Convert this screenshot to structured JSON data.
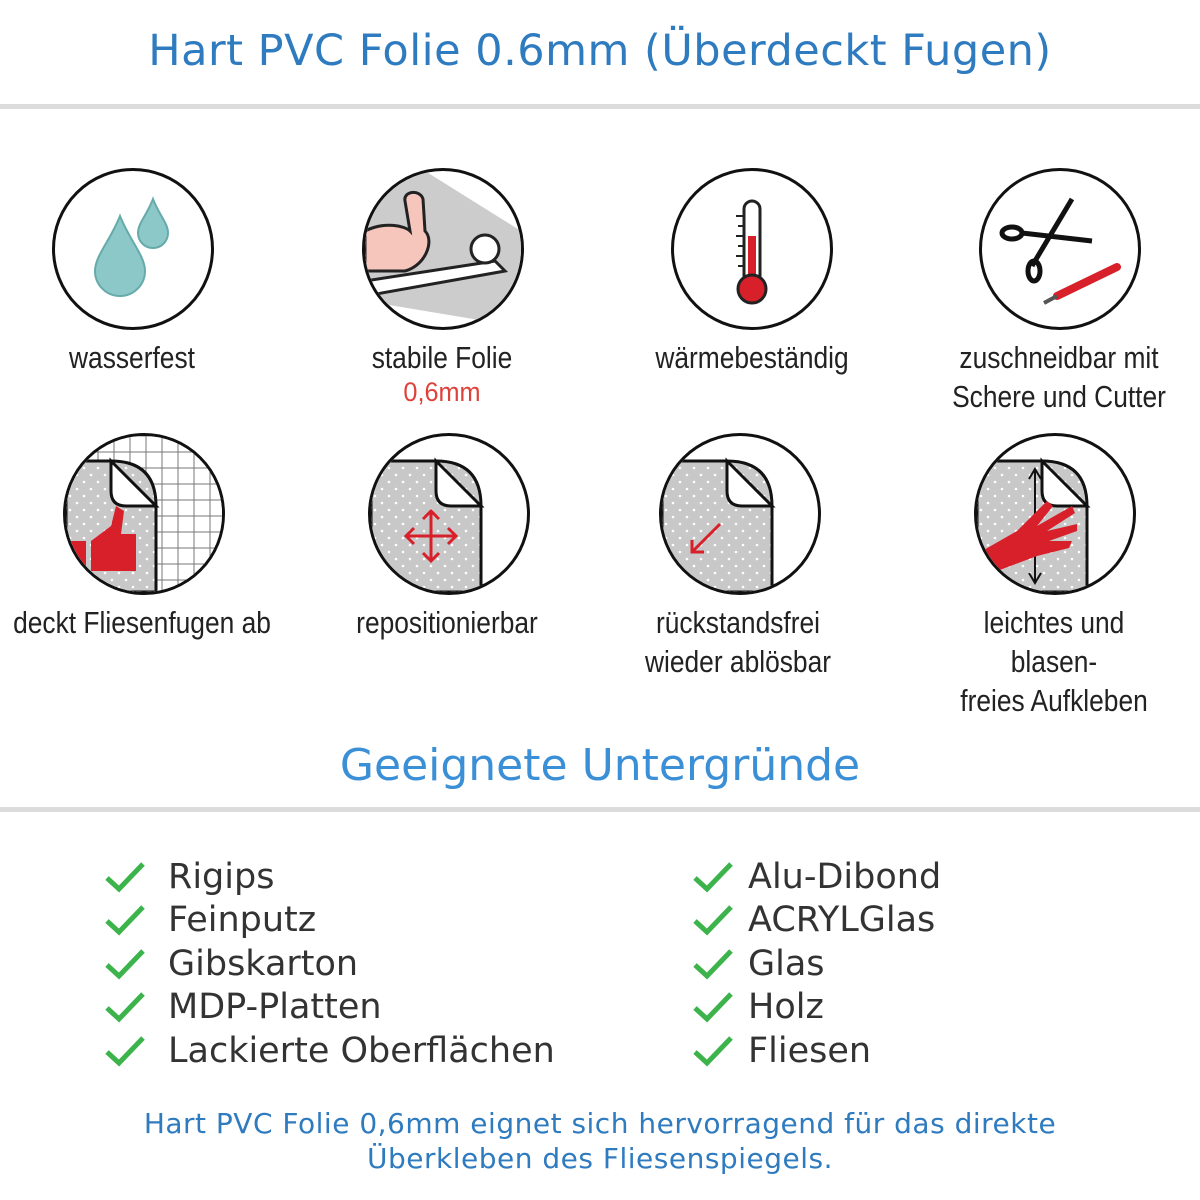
{
  "header": {
    "title": "Hart PVC Folie 0.6mm (Überdeckt Fugen)"
  },
  "features": [
    {
      "icon": "water-drops-icon",
      "label": "wasserfest"
    },
    {
      "icon": "strong-arm-icon",
      "label": "stabile Folie",
      "sublabel": "0,6mm"
    },
    {
      "icon": "thermometer-icon",
      "label": "wärmebeständig"
    },
    {
      "icon": "scissors-cutter-icon",
      "label_line1": "zuschneidbar mit",
      "label_line2": "Schere und Cutter"
    },
    {
      "icon": "thumbs-up-tiles-icon",
      "label": "deckt Fliesenfugen ab"
    },
    {
      "icon": "move-arrows-icon",
      "label": "repositionierbar"
    },
    {
      "icon": "peel-arrow-icon",
      "label_line1": "rückstandsfrei",
      "label_line2": "wieder ablösbar"
    },
    {
      "icon": "hand-smoothing-icon",
      "label_line1": "leichtes und blasen-",
      "label_line2": "freies Aufkleben"
    }
  ],
  "surfaces": {
    "title": "Geeignete Untergründe",
    "left": [
      "Rigips",
      "Feinputz",
      "Gibskarton",
      "MDP-Platten",
      "Lackierte Oberflächen"
    ],
    "right": [
      "Alu-Dibond",
      "ACRYLGlas",
      "Glas",
      "Holz",
      "Fliesen"
    ]
  },
  "footer": {
    "line1": "Hart PVC Folie 0,6mm eignet sich hervorragend für das direkte",
    "line2": "Überkleben des Fliesenspiegels."
  },
  "colors": {
    "title": "#2f7bbf",
    "subtitle": "#3a8fd6",
    "accent_red": "#d8202a",
    "check": "#3cb44b",
    "drop": "#8cc8c8"
  }
}
